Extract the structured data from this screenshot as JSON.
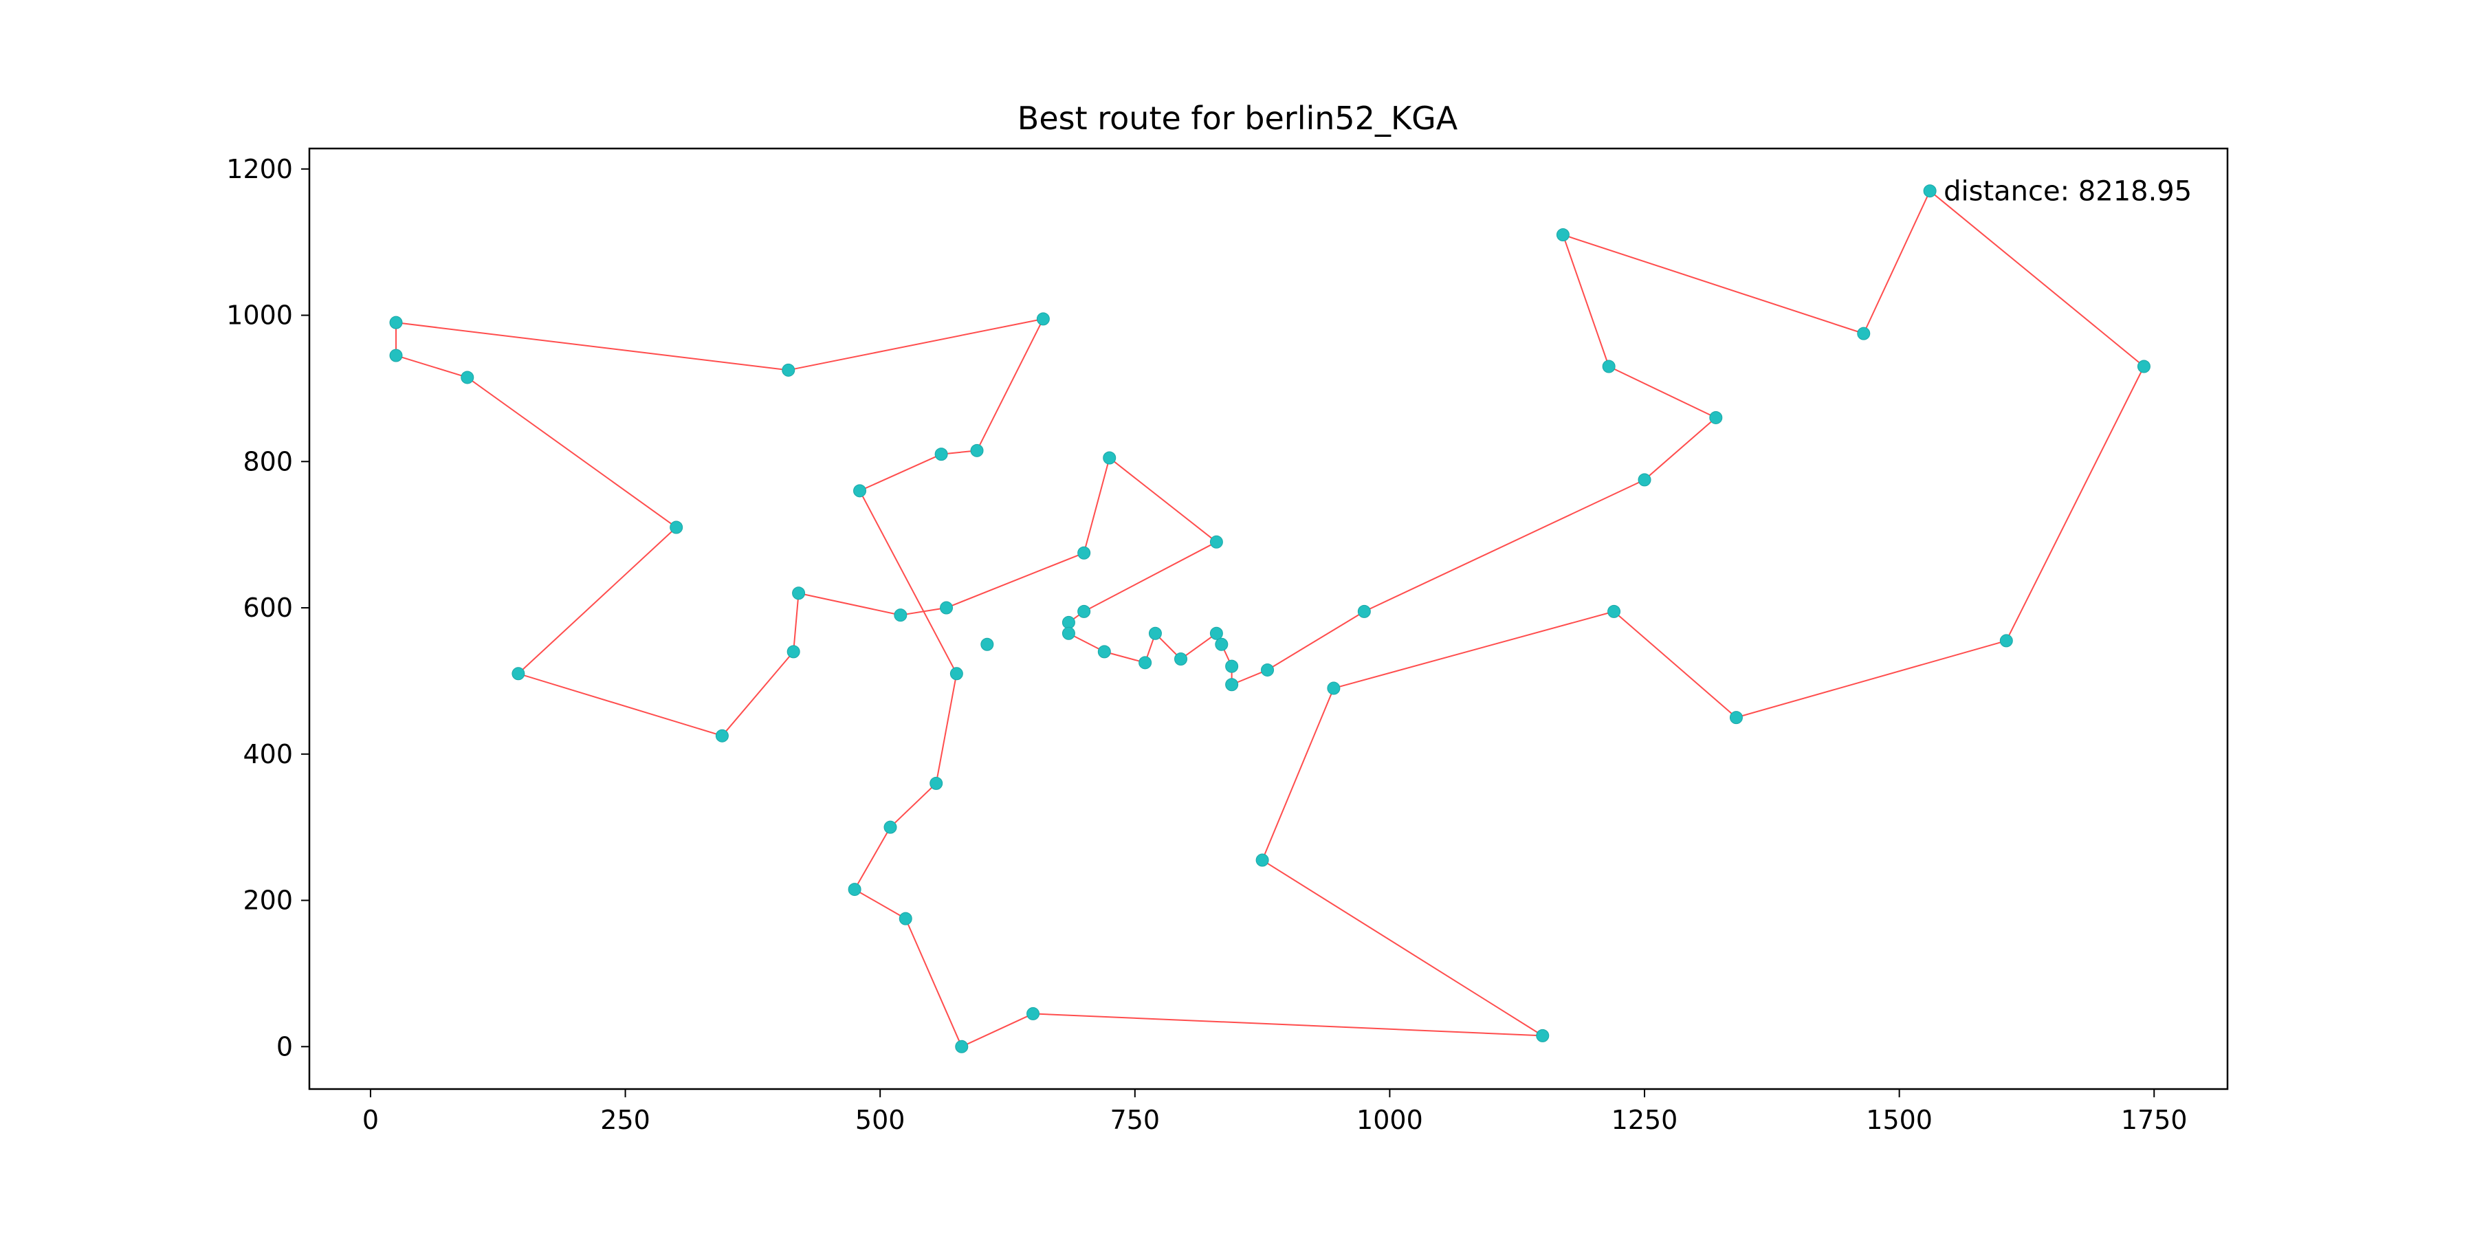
{
  "chart_data": {
    "type": "line",
    "title": "Best route for berlin52_KGA",
    "xlabel": "",
    "ylabel": "",
    "xlim": [
      -60,
      1822
    ],
    "ylim": [
      -58,
      1228
    ],
    "x_ticks": [
      0,
      250,
      500,
      750,
      1000,
      1250,
      1500,
      1750
    ],
    "y_ticks": [
      0,
      200,
      400,
      600,
      800,
      1000,
      1200
    ],
    "grid": false,
    "annotation": {
      "text": "distance: 8218.95",
      "x": 1530,
      "y": 1170
    },
    "colors": {
      "route": "#ff4d4d",
      "points": "#22c0c0"
    },
    "route": [
      [
        1530,
        1170
      ],
      [
        1740,
        930
      ],
      [
        1605,
        555
      ],
      [
        1340,
        450
      ],
      [
        1220,
        595
      ],
      [
        945,
        490
      ],
      [
        875,
        255
      ],
      [
        1150,
        15
      ],
      [
        650,
        45
      ],
      [
        580,
        0
      ],
      [
        525,
        175
      ],
      [
        475,
        215
      ],
      [
        510,
        300
      ],
      [
        555,
        360
      ],
      [
        575,
        510
      ],
      [
        480,
        760
      ],
      [
        560,
        810
      ],
      [
        595,
        815
      ],
      [
        660,
        995
      ],
      [
        410,
        925
      ],
      [
        25,
        990
      ],
      [
        25,
        945
      ],
      [
        95,
        915
      ],
      [
        300,
        710
      ],
      [
        145,
        510
      ],
      [
        345,
        425
      ],
      [
        415,
        540
      ],
      [
        420,
        620
      ],
      [
        520,
        590
      ],
      [
        565,
        600
      ],
      [
        700,
        675
      ],
      [
        725,
        805
      ],
      [
        830,
        690
      ],
      [
        700,
        595
      ],
      [
        685,
        580
      ],
      [
        685,
        565
      ],
      [
        720,
        540
      ],
      [
        760,
        525
      ],
      [
        770,
        565
      ],
      [
        795,
        530
      ],
      [
        830,
        565
      ],
      [
        835,
        550
      ],
      [
        845,
        520
      ],
      [
        845,
        495
      ],
      [
        880,
        515
      ],
      [
        975,
        595
      ],
      [
        1250,
        775
      ],
      [
        1320,
        860
      ],
      [
        1215,
        930
      ],
      [
        1170,
        1110
      ],
      [
        1465,
        975
      ],
      [
        1530,
        1170
      ]
    ],
    "extra_points": [
      [
        605,
        550
      ]
    ]
  }
}
